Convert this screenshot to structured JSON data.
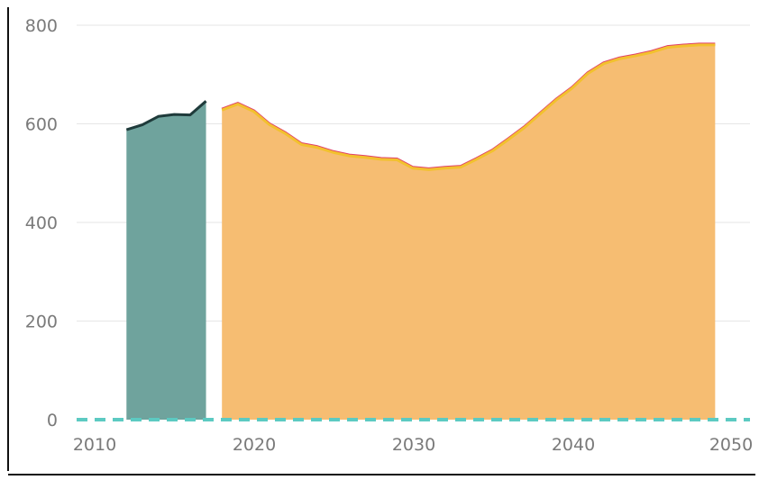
{
  "chart_data": {
    "type": "area",
    "xlim": [
      2008,
      2051
    ],
    "ylim": [
      0,
      800
    ],
    "grid": true,
    "legend": "none",
    "x_ticks": [
      {
        "value": 2010,
        "label": "2010"
      },
      {
        "value": 2020,
        "label": "2020"
      },
      {
        "value": 2030,
        "label": "2030"
      },
      {
        "value": 2040,
        "label": "2040"
      },
      {
        "value": 2050,
        "label": "2050"
      }
    ],
    "y_ticks": [
      {
        "value": 0,
        "label": "0"
      },
      {
        "value": 200,
        "label": "200"
      },
      {
        "value": 400,
        "label": "400"
      },
      {
        "value": 600,
        "label": "600"
      },
      {
        "value": 800,
        "label": "800"
      }
    ],
    "series": [
      {
        "role": "historical",
        "fill_color": "#6fa39d",
        "line_color": "#1f3b3b",
        "x": [
          2012,
          2013,
          2014,
          2015,
          2016,
          2017
        ],
        "values": [
          588,
          598,
          615,
          619,
          618,
          646
        ]
      },
      {
        "role": "projection",
        "fill_color": "#f6bd72",
        "line_color": "#f2c12e",
        "secondary_line_color": "#e0406a",
        "x": [
          2018,
          2019,
          2020,
          2021,
          2022,
          2023,
          2024,
          2025,
          2026,
          2027,
          2028,
          2029,
          2030,
          2031,
          2032,
          2033,
          2034,
          2035,
          2036,
          2037,
          2038,
          2039,
          2040,
          2041,
          2042,
          2043,
          2044,
          2045,
          2046,
          2047,
          2048,
          2049
        ],
        "values": [
          628,
          640,
          625,
          598,
          580,
          558,
          552,
          542,
          535,
          532,
          528,
          527,
          510,
          507,
          510,
          512,
          528,
          545,
          568,
          592,
          620,
          648,
          672,
          702,
          722,
          732,
          738,
          745,
          755,
          758,
          760,
          760
        ]
      }
    ],
    "baseline": {
      "value": 0,
      "color": "#5ccac2",
      "style": "dashed"
    }
  }
}
